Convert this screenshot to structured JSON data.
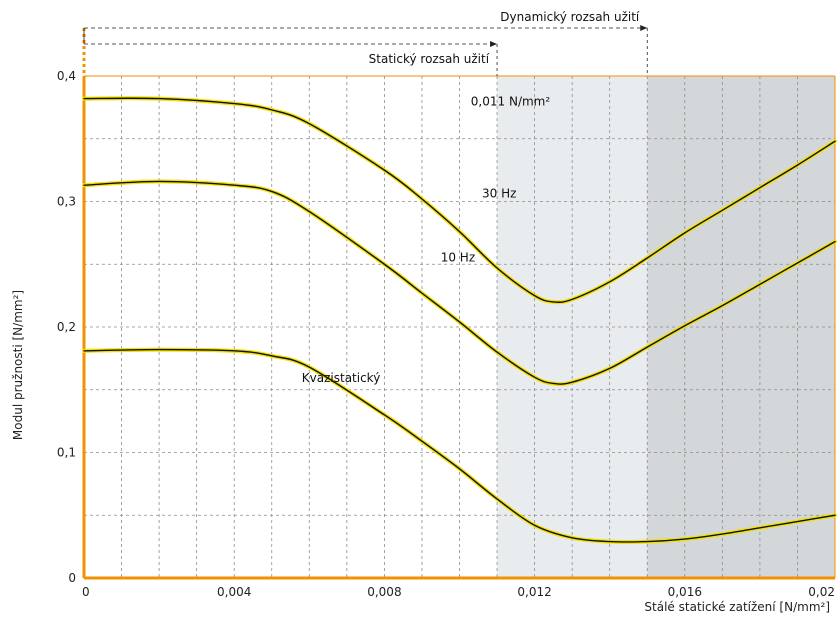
{
  "chart_data": {
    "type": "line",
    "xlabel": "Stálé statické zatížení [N/mm²]",
    "ylabel": "Modul pružnosti [N/mm²]",
    "xlim": [
      0,
      0.02
    ],
    "ylim": [
      0,
      0.4
    ],
    "x_ticks": [
      {
        "value": 0,
        "label": "0"
      },
      {
        "value": 0.004,
        "label": "0,004"
      },
      {
        "value": 0.008,
        "label": "0,008"
      },
      {
        "value": 0.012,
        "label": "0,012"
      },
      {
        "value": 0.016,
        "label": "0,016"
      },
      {
        "value": 0.02,
        "label": "0,02"
      }
    ],
    "y_ticks": [
      {
        "value": 0,
        "label": "0"
      },
      {
        "value": 0.1,
        "label": "0,1"
      },
      {
        "value": 0.2,
        "label": "0,2"
      },
      {
        "value": 0.3,
        "label": "0,3"
      },
      {
        "value": 0.4,
        "label": "0,4"
      }
    ],
    "series": [
      {
        "name": "30 Hz",
        "x": [
          0,
          0.002,
          0.004,
          0.005,
          0.006,
          0.008,
          0.009,
          0.01,
          0.011,
          0.012,
          0.0125,
          0.013,
          0.014,
          0.015,
          0.016,
          0.017,
          0.018,
          0.019,
          0.02
        ],
        "y": [
          0.382,
          0.382,
          0.378,
          0.373,
          0.362,
          0.325,
          0.302,
          0.276,
          0.247,
          0.225,
          0.22,
          0.222,
          0.236,
          0.255,
          0.275,
          0.293,
          0.311,
          0.329,
          0.348
        ]
      },
      {
        "name": "10 Hz",
        "x": [
          0,
          0.002,
          0.004,
          0.005,
          0.006,
          0.008,
          0.009,
          0.01,
          0.011,
          0.012,
          0.0125,
          0.013,
          0.014,
          0.015,
          0.016,
          0.017,
          0.018,
          0.019,
          0.02
        ],
        "y": [
          0.313,
          0.316,
          0.313,
          0.308,
          0.292,
          0.25,
          0.227,
          0.204,
          0.18,
          0.16,
          0.155,
          0.156,
          0.167,
          0.184,
          0.201,
          0.217,
          0.234,
          0.251,
          0.268
        ]
      },
      {
        "name": "Kvazistatický",
        "x": [
          0,
          0.002,
          0.004,
          0.005,
          0.006,
          0.008,
          0.009,
          0.01,
          0.011,
          0.012,
          0.013,
          0.014,
          0.015,
          0.016,
          0.017,
          0.018,
          0.019,
          0.02
        ],
        "y": [
          0.181,
          0.182,
          0.181,
          0.177,
          0.168,
          0.13,
          0.109,
          0.087,
          0.063,
          0.042,
          0.032,
          0.029,
          0.029,
          0.031,
          0.035,
          0.04,
          0.045,
          0.05
        ]
      }
    ],
    "curve_labels": [
      {
        "text": "30 Hz",
        "x": 0.0106,
        "y": 0.303
      },
      {
        "text": "10 Hz",
        "x": 0.0095,
        "y": 0.252
      },
      {
        "text": "Kvazistatický",
        "x": 0.0058,
        "y": 0.156
      }
    ],
    "ranges": [
      {
        "label": "Statický rozsah užití",
        "from": 0,
        "to": 0.011,
        "color": "#e9ecef"
      },
      {
        "label": "Dynamický rozsah užití",
        "from": 0,
        "to": 0.015,
        "color": "#d4d7da"
      }
    ],
    "threshold_label": {
      "text": "0,011 N/mm²",
      "x": 0.0111,
      "y": 0.383
    },
    "grid": true,
    "colors": {
      "accent": "#f39200",
      "curve": "#111111",
      "curve_glow": "#f2e000"
    }
  }
}
